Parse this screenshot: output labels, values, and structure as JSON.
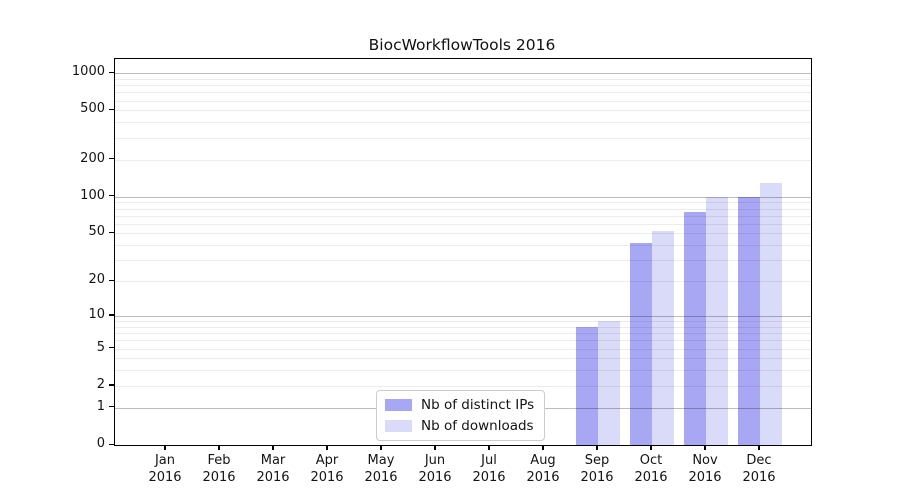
{
  "title": "BiocWorkflowTools 2016",
  "chart_data": {
    "type": "bar",
    "title": "BiocWorkflowTools 2016",
    "categories": [
      "Jan",
      "Feb",
      "Mar",
      "Apr",
      "May",
      "Jun",
      "Jul",
      "Aug",
      "Sep",
      "Oct",
      "Nov",
      "Dec"
    ],
    "x_year_label": "2016",
    "series": [
      {
        "name": "Nb of distinct IPs",
        "color": "#a7a7f3",
        "values": [
          0,
          0,
          0,
          0,
          0,
          0,
          0,
          0,
          8,
          42,
          75,
          100
        ]
      },
      {
        "name": "Nb of downloads",
        "color": "#dadaf9",
        "values": [
          0,
          0,
          0,
          0,
          0,
          0,
          0,
          0,
          9,
          52,
          100,
          128
        ]
      }
    ],
    "yscale": "log1p",
    "yticks": [
      0,
      1,
      2,
      5,
      10,
      20,
      50,
      100,
      200,
      500,
      1000
    ],
    "ytick_labels": [
      "0",
      "1",
      "2",
      "5",
      "10",
      "20",
      "50",
      "100",
      "200",
      "500",
      "1000"
    ],
    "ylim": [
      0,
      1300
    ],
    "grid": "horizontal, major and minor, drawn over bars",
    "legend_position": "inside bottom-center-left"
  },
  "colors": {
    "background": "#ffffff",
    "spine": "#000000",
    "major_grid": "#bdbdbd",
    "minor_grid": "#ececec",
    "text": "#141414",
    "legend_border": "#cccccc"
  }
}
